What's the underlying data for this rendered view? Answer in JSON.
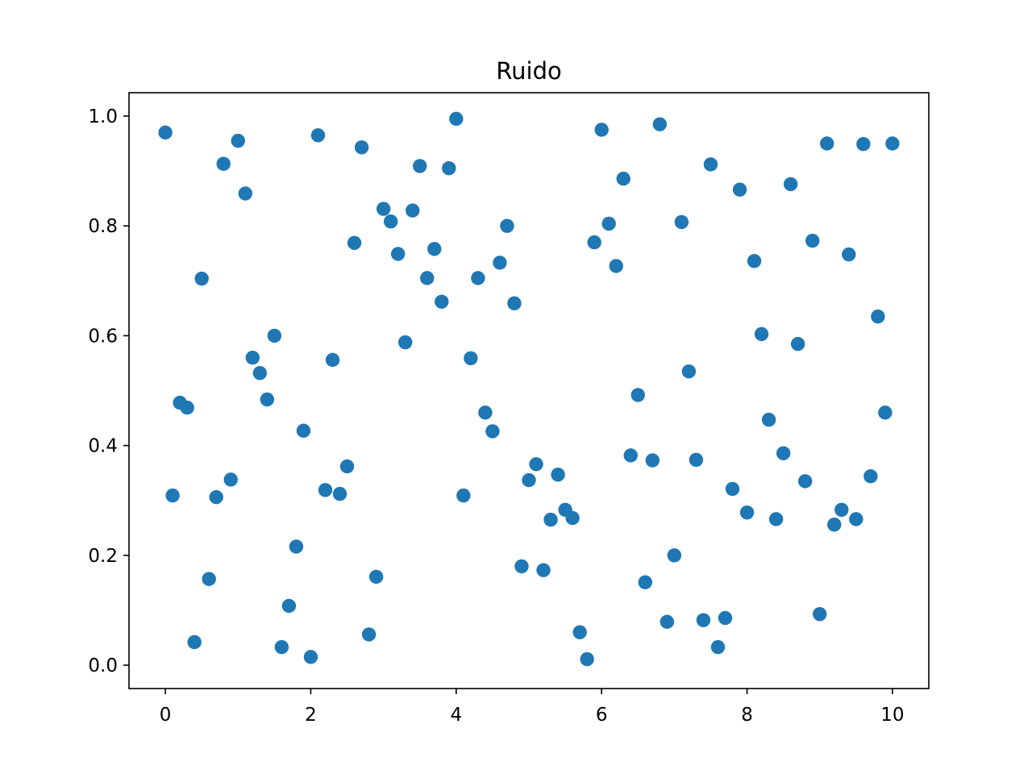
{
  "chart_data": {
    "type": "scatter",
    "title": "Ruido",
    "xlabel": "",
    "ylabel": "",
    "xlim": [
      -0.5,
      10.5
    ],
    "ylim": [
      -0.0425,
      1.0425
    ],
    "xticks": [
      0,
      2,
      4,
      6,
      8,
      10
    ],
    "xtick_labels": [
      "0",
      "2",
      "4",
      "6",
      "8",
      "10"
    ],
    "yticks": [
      0.0,
      0.2,
      0.4,
      0.6,
      0.8,
      1.0
    ],
    "ytick_labels": [
      "0.0",
      "0.2",
      "0.4",
      "0.6",
      "0.8",
      "1.0"
    ],
    "grid": false,
    "marker_color": "#1f77b4",
    "series": [
      {
        "x": [
          0.0,
          0.1,
          0.2,
          0.3,
          0.4,
          0.5,
          0.6,
          0.7,
          0.8,
          0.9,
          1.0,
          1.1,
          1.2,
          1.3,
          1.4,
          1.5,
          1.6,
          1.7,
          1.8,
          1.9,
          2.0,
          2.1,
          2.2,
          2.3,
          2.4,
          2.5,
          2.6,
          2.7,
          2.8,
          2.9,
          3.0,
          3.1,
          3.2,
          3.3,
          3.4,
          3.5,
          3.6,
          3.7,
          3.8,
          3.9,
          4.0,
          4.1,
          4.2,
          4.3,
          4.4,
          4.5,
          4.6,
          4.7,
          4.8,
          4.9,
          5.0,
          5.1,
          5.2,
          5.3,
          5.4,
          5.5,
          5.6,
          5.7,
          5.8,
          5.9,
          6.0,
          6.1,
          6.2,
          6.3,
          6.4,
          6.5,
          6.6,
          6.7,
          6.8,
          6.9,
          7.0,
          7.1,
          7.2,
          7.3,
          7.4,
          7.5,
          7.6,
          7.7,
          7.8,
          7.9,
          8.0,
          8.1,
          8.2,
          8.3,
          8.4,
          8.5,
          8.6,
          8.7,
          8.8,
          8.9,
          9.0,
          9.1,
          9.2,
          9.3,
          9.4,
          9.5,
          9.6,
          9.7,
          9.8,
          9.9,
          10.0
        ],
        "y": [
          0.97,
          0.309,
          0.478,
          0.469,
          0.042,
          0.704,
          0.157,
          0.306,
          0.913,
          0.338,
          0.955,
          0.859,
          0.56,
          0.532,
          0.484,
          0.6,
          0.033,
          0.108,
          0.216,
          0.427,
          0.015,
          0.965,
          0.319,
          0.556,
          0.312,
          0.362,
          0.769,
          0.943,
          0.056,
          0.161,
          0.831,
          0.808,
          0.749,
          0.588,
          0.828,
          0.909,
          0.705,
          0.758,
          0.662,
          0.905,
          0.995,
          0.309,
          0.559,
          0.705,
          0.46,
          0.426,
          0.733,
          0.8,
          0.659,
          0.18,
          0.337,
          0.366,
          0.173,
          0.265,
          0.347,
          0.283,
          0.268,
          0.06,
          0.011,
          0.77,
          0.975,
          0.804,
          0.727,
          0.886,
          0.382,
          0.492,
          0.151,
          0.373,
          0.985,
          0.079,
          0.2,
          0.807,
          0.535,
          0.374,
          0.082,
          0.912,
          0.033,
          0.086,
          0.321,
          0.866,
          0.278,
          0.736,
          0.603,
          0.447,
          0.266,
          0.386,
          0.876,
          0.585,
          0.335,
          0.773,
          0.093,
          0.95,
          0.256,
          0.283,
          0.748,
          0.266,
          0.949,
          0.344,
          0.635,
          0.46,
          0.95
        ]
      }
    ]
  }
}
